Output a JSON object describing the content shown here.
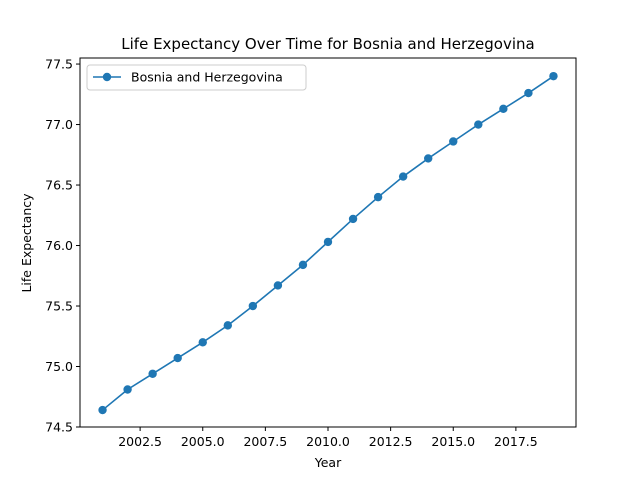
{
  "chart_data": {
    "type": "line",
    "title": "Life Expectancy Over Time for Bosnia and Herzegovina",
    "xlabel": "Year",
    "ylabel": "Life Expectancy",
    "xlim": [
      2000.1,
      2019.9
    ],
    "ylim": [
      74.5,
      77.55
    ],
    "x_ticks": [
      2002.5,
      2005.0,
      2007.5,
      2010.0,
      2012.5,
      2015.0,
      2017.5
    ],
    "x_tick_labels": [
      "2002.5",
      "2005.0",
      "2007.5",
      "2010.0",
      "2012.5",
      "2015.0",
      "2017.5"
    ],
    "y_ticks": [
      74.5,
      75.0,
      75.5,
      76.0,
      76.5,
      77.0,
      77.5
    ],
    "y_tick_labels": [
      "74.5",
      "75.0",
      "75.5",
      "76.0",
      "76.5",
      "77.0",
      "77.5"
    ],
    "legend_position": "upper-left",
    "grid": false,
    "series": [
      {
        "name": "Bosnia and Herzegovina",
        "color": "#1f77b4",
        "marker": "circle",
        "x": [
          2001,
          2002,
          2003,
          2004,
          2005,
          2006,
          2007,
          2008,
          2009,
          2010,
          2011,
          2012,
          2013,
          2014,
          2015,
          2016,
          2017,
          2018,
          2019
        ],
        "y": [
          74.64,
          74.81,
          74.94,
          75.07,
          75.2,
          75.34,
          75.5,
          75.67,
          75.84,
          76.03,
          76.22,
          76.4,
          76.57,
          76.72,
          76.86,
          77.0,
          77.13,
          77.26,
          77.4
        ]
      }
    ]
  }
}
